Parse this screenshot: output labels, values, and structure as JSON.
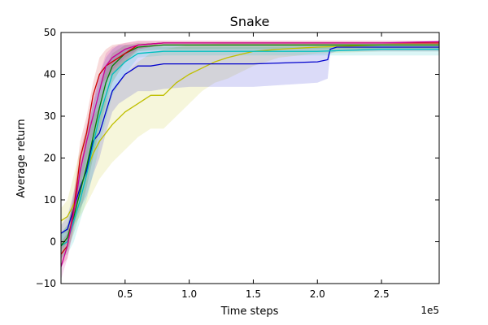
{
  "chart_data": {
    "type": "line",
    "title": "Snake",
    "xlabel": "Time steps",
    "ylabel": "Average return",
    "x_scale_label": "1e5",
    "xlim": [
      0.0,
      2.95
    ],
    "ylim": [
      -10,
      50
    ],
    "x_ticks": [
      0.5,
      1.0,
      1.5,
      2.0,
      2.5
    ],
    "x_tick_labels": [
      "0.5",
      "1.0",
      "1.5",
      "2.0",
      "2.5"
    ],
    "y_ticks": [
      -10,
      0,
      10,
      20,
      30,
      40,
      50
    ],
    "y_tick_labels": [
      "−10",
      "0",
      "10",
      "20",
      "30",
      "40",
      "50"
    ],
    "grid": false,
    "legend": "none",
    "series": [
      {
        "name": "yellow",
        "color": "#bfbf00",
        "x": [
          0,
          0.05,
          0.1,
          0.15,
          0.2,
          0.25,
          0.3,
          0.35,
          0.4,
          0.5,
          0.6,
          0.7,
          0.8,
          0.9,
          1.0,
          1.1,
          1.2,
          1.3,
          1.5,
          1.7,
          2.0,
          2.5,
          2.95
        ],
        "y": [
          5,
          6,
          9,
          13,
          17,
          21,
          24,
          26,
          28,
          31,
          33,
          35,
          35,
          38,
          40,
          41.5,
          43,
          44,
          45.5,
          46,
          46.5,
          47,
          47
        ],
        "upper": [
          8,
          10,
          16,
          22,
          27,
          30,
          32,
          34,
          36,
          40,
          43,
          45,
          46,
          46.5,
          47,
          47.2,
          47.3,
          47.5,
          47.5,
          47.5,
          47.5,
          47.5,
          47.5
        ],
        "lower": [
          2,
          2,
          4,
          6,
          9,
          12,
          15,
          17,
          19,
          22,
          25,
          27,
          27,
          30,
          33,
          36,
          38,
          39,
          42,
          44,
          45,
          45.5,
          45.5
        ]
      },
      {
        "name": "blue",
        "color": "#0000cc",
        "x": [
          0,
          0.05,
          0.1,
          0.15,
          0.2,
          0.25,
          0.3,
          0.35,
          0.4,
          0.45,
          0.5,
          0.55,
          0.6,
          0.7,
          0.8,
          1.0,
          1.5,
          2.0,
          2.08,
          2.1,
          2.15,
          2.5,
          2.95
        ],
        "y": [
          2,
          3,
          8,
          13,
          17,
          24,
          26,
          31,
          36,
          38,
          40,
          41,
          42,
          42,
          42.5,
          42.5,
          42.5,
          43,
          43.5,
          46,
          46.5,
          46.5,
          46.5
        ],
        "upper": [
          4,
          6,
          12,
          18,
          25,
          33,
          40,
          44,
          46,
          47,
          47,
          47,
          47,
          47,
          47,
          47,
          47,
          47,
          47,
          47,
          47,
          47,
          47
        ],
        "lower": [
          -2,
          0,
          4,
          8,
          11,
          16,
          20,
          26,
          31,
          33,
          34,
          35,
          36,
          36,
          36.5,
          37,
          37,
          38,
          39,
          45,
          45.5,
          45.5,
          45.5
        ]
      },
      {
        "name": "cyan",
        "color": "#00bfbf",
        "x": [
          0,
          0.05,
          0.1,
          0.15,
          0.2,
          0.25,
          0.3,
          0.35,
          0.4,
          0.5,
          0.6,
          0.8,
          1.0,
          1.5,
          2.0,
          2.5,
          2.95
        ],
        "y": [
          -1,
          0,
          5,
          10,
          16,
          23,
          30,
          35,
          40,
          43,
          45,
          45.5,
          45.5,
          45.5,
          45.5,
          46,
          46
        ],
        "upper": [
          2,
          4,
          10,
          18,
          26,
          33,
          38,
          42,
          44,
          46,
          46.5,
          46.5,
          46.5,
          46.5,
          46.5,
          46.5,
          46.5
        ],
        "lower": [
          -4,
          -3,
          0,
          5,
          10,
          16,
          23,
          29,
          35,
          40,
          44,
          44.5,
          44.5,
          44.5,
          44.5,
          44.5,
          44.5
        ]
      },
      {
        "name": "green",
        "color": "#008000",
        "x": [
          0,
          0.05,
          0.1,
          0.15,
          0.2,
          0.25,
          0.3,
          0.35,
          0.4,
          0.5,
          0.6,
          0.8,
          1.0,
          1.5,
          2.0,
          2.5,
          2.95
        ],
        "y": [
          -1,
          1,
          6,
          12,
          18,
          25,
          32,
          38,
          42,
          45,
          46.5,
          47,
          47,
          47,
          47,
          47,
          47
        ],
        "upper": [
          2,
          4,
          10,
          16,
          22,
          30,
          37,
          42,
          45,
          47,
          47.5,
          47.5,
          47.5,
          47.5,
          47.5,
          47.5,
          47.5
        ],
        "lower": [
          -4,
          -2,
          2,
          7,
          13,
          20,
          27,
          33,
          38,
          43,
          45.5,
          46,
          46,
          46,
          46,
          46,
          46
        ]
      },
      {
        "name": "red",
        "color": "#cc0000",
        "x": [
          0,
          0.05,
          0.1,
          0.15,
          0.2,
          0.25,
          0.3,
          0.35,
          0.4,
          0.5,
          0.6,
          0.8,
          1.0,
          1.5,
          2.0,
          2.5,
          2.95
        ],
        "y": [
          -3,
          -1,
          8,
          20,
          26,
          35,
          40,
          42,
          43,
          45,
          47,
          47.5,
          47.5,
          47.5,
          47.5,
          47.5,
          47.5
        ],
        "upper": [
          0,
          2,
          12,
          24,
          30,
          38,
          44,
          46,
          47,
          47.5,
          48,
          48,
          48,
          48,
          48,
          48,
          48
        ],
        "lower": [
          -6,
          -4,
          4,
          16,
          22,
          31,
          37,
          39,
          40,
          43,
          46,
          47,
          47,
          47,
          47,
          47,
          47
        ]
      },
      {
        "name": "magenta",
        "color": "#cc0099",
        "x": [
          0,
          0.05,
          0.1,
          0.15,
          0.2,
          0.25,
          0.3,
          0.35,
          0.4,
          0.5,
          0.6,
          0.8,
          1.0,
          1.5,
          2.0,
          2.5,
          2.95
        ],
        "y": [
          -6,
          -1,
          7,
          17,
          24,
          30,
          36,
          42,
          44,
          46,
          47,
          47.5,
          47.5,
          47.5,
          47.5,
          47.5,
          47.8
        ],
        "upper": [
          -3,
          2,
          11,
          21,
          28,
          34,
          40,
          45,
          46.5,
          47.5,
          48,
          48,
          48,
          48,
          48,
          48,
          48
        ],
        "lower": [
          -9,
          -4,
          3,
          13,
          20,
          26,
          32,
          38,
          41,
          44,
          46,
          47,
          47,
          47,
          47,
          47,
          47
        ]
      }
    ]
  }
}
